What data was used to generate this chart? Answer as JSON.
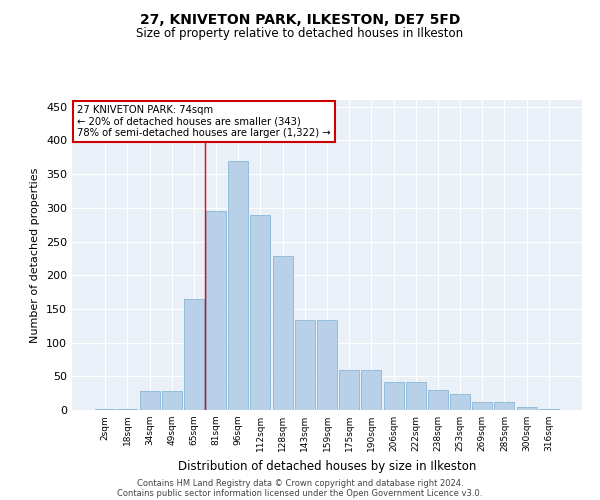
{
  "title": "27, KNIVETON PARK, ILKESTON, DE7 5FD",
  "subtitle": "Size of property relative to detached houses in Ilkeston",
  "xlabel": "Distribution of detached houses by size in Ilkeston",
  "ylabel": "Number of detached properties",
  "categories": [
    "2sqm",
    "18sqm",
    "34sqm",
    "49sqm",
    "65sqm",
    "81sqm",
    "96sqm",
    "112sqm",
    "128sqm",
    "143sqm",
    "159sqm",
    "175sqm",
    "190sqm",
    "206sqm",
    "222sqm",
    "238sqm",
    "253sqm",
    "269sqm",
    "285sqm",
    "300sqm",
    "316sqm"
  ],
  "values": [
    2,
    2,
    28,
    28,
    165,
    295,
    370,
    290,
    228,
    133,
    133,
    59,
    59,
    42,
    42,
    30,
    24,
    12,
    12,
    5,
    2
  ],
  "bar_color": "#b8d0e8",
  "bar_edge_color": "#7aafd4",
  "background_color": "#eaf0f7",
  "grid_color": "#ffffff",
  "annotation_line1": "27 KNIVETON PARK: 74sqm",
  "annotation_line2": "← 20% of detached houses are smaller (343)",
  "annotation_line3": "78% of semi-detached houses are larger (1,322) →",
  "annotation_box_color": "#cc0000",
  "red_line_x": 4.5,
  "ylim": [
    0,
    460
  ],
  "yticks": [
    0,
    50,
    100,
    150,
    200,
    250,
    300,
    350,
    400,
    450
  ],
  "footer1": "Contains HM Land Registry data © Crown copyright and database right 2024.",
  "footer2": "Contains public sector information licensed under the Open Government Licence v3.0."
}
